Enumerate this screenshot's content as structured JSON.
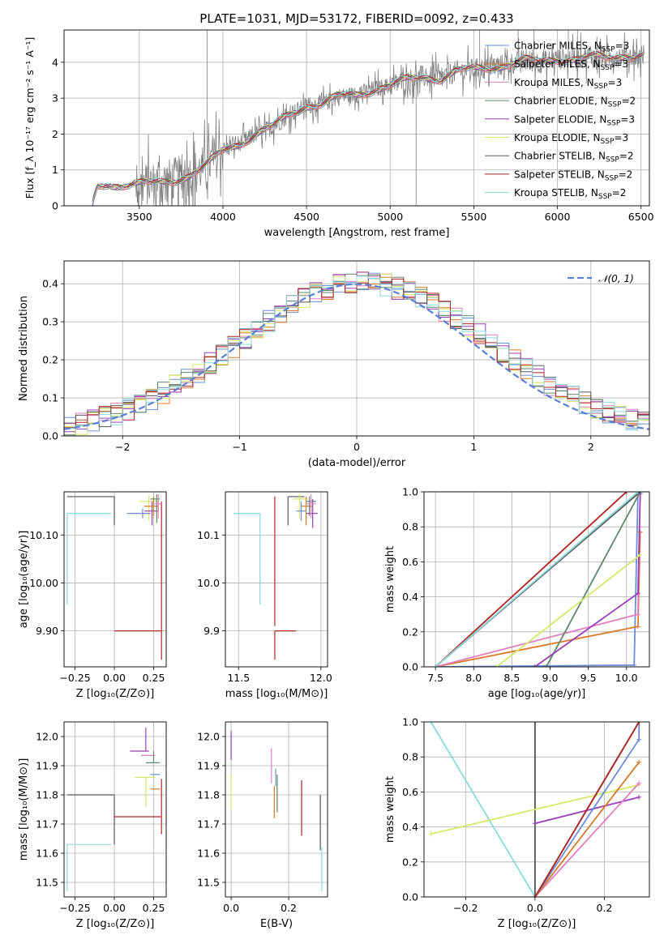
{
  "colors": [
    "#6a8fd8",
    "#d87a2c",
    "#e17fbf",
    "#5a8a6a",
    "#9b3fb8",
    "#d4e86a",
    "#555555",
    "#b22222",
    "#8adada"
  ],
  "chart_data": [
    {
      "id": "spectrum",
      "type": "line",
      "title": "PLATE=1031, MJD=53172, FIBERID=0092, z=0.433",
      "xlabel": "wavelength [Angstrom, rest frame]",
      "ylabel": "Flux [f_λ 10⁻¹⁷ erg cm⁻² s⁻¹ A⁻¹]",
      "xlim": [
        3050,
        6550
      ],
      "ylim": [
        0,
        4.9
      ],
      "xticks": [
        3500,
        4000,
        4500,
        5000,
        5500,
        6000,
        6500
      ],
      "yticks": [
        0,
        1,
        2,
        3,
        4
      ],
      "legend_position": "top-right",
      "series": [
        {
          "name": "Chabrier MILES, N_SSP=3"
        },
        {
          "name": "Salpeter MILES, N_SSP=3"
        },
        {
          "name": "Kroupa MILES, N_SSP=3"
        },
        {
          "name": "Chabrier ELODIE, N_SSP=2"
        },
        {
          "name": "Salpeter ELODIE, N_SSP=3"
        },
        {
          "name": "Kroupa ELODIE, N_SSP=3"
        },
        {
          "name": "Chabrier STELIB, N_SSP=2"
        },
        {
          "name": "Salpeter STELIB, N_SSP=2"
        },
        {
          "name": "Kroupa STELIB, N_SSP=2"
        }
      ],
      "model_x": [
        3220,
        3250,
        3300,
        3400,
        3500,
        3600,
        3700,
        3800,
        3900,
        4000,
        4100,
        4200,
        4300,
        4400,
        4500,
        4600,
        4700,
        4800,
        4900,
        5000,
        5100,
        5200,
        5300,
        5400,
        5500,
        5600,
        5700,
        5800,
        5900,
        6000,
        6100,
        6200,
        6300,
        6400,
        6500
      ],
      "model_y": [
        0.05,
        0.55,
        0.6,
        0.58,
        0.6,
        0.63,
        0.72,
        0.85,
        1.1,
        1.55,
        1.75,
        2.0,
        2.2,
        2.55,
        2.8,
        2.85,
        3.05,
        3.1,
        3.25,
        3.35,
        3.5,
        3.6,
        3.55,
        3.75,
        3.8,
        3.85,
        3.95,
        4.05,
        4.0,
        4.1,
        4.1,
        4.15,
        4.1,
        4.2,
        4.2
      ]
    },
    {
      "id": "residuals",
      "type": "step",
      "xlabel": "(data-model)/error",
      "ylabel": "Normed distribution",
      "xlim": [
        -2.5,
        2.5
      ],
      "ylim": [
        0,
        0.46
      ],
      "xticks": [
        -2,
        -1,
        0,
        1,
        2
      ],
      "yticks": [
        0.0,
        0.1,
        0.2,
        0.3,
        0.4
      ],
      "legend_position": "top-right",
      "reference_series": {
        "name": "𝒩(0, 1)",
        "style": "dashed"
      }
    },
    {
      "id": "age-vs-Z",
      "type": "errorbar",
      "xlabel": "Z [log₁₀(Z/Z⊙)]",
      "ylabel": "age  [log₁₀(age/yr)]",
      "xlim": [
        -0.32,
        0.33
      ],
      "ylim": [
        9.825,
        10.19
      ],
      "xticks": [
        -0.25,
        0.0,
        0.25
      ],
      "yticks": [
        9.9,
        10.0,
        10.1
      ],
      "points": [
        {
          "x": 0.0,
          "xerr": [
            0.3,
            0.0
          ],
          "y": 10.18,
          "yerr": [
            0.06,
            0.0
          ],
          "c": 6
        },
        {
          "x": -0.3,
          "xerr": [
            0,
            0.28
          ],
          "y": 10.145,
          "yerr": [
            0.19,
            0.0
          ],
          "c": 8
        },
        {
          "x": 0.3,
          "xerr": [
            0.3,
            0.0
          ],
          "y": 9.9,
          "yerr": [
            0.0,
            0.0
          ],
          "c": 7
        },
        {
          "x": 0.3,
          "xerr": [
            0,
            0
          ],
          "y": 10.17,
          "yerr": [
            0.33,
            0.0
          ],
          "c": 7
        },
        {
          "x": 0.22,
          "xerr": [
            0.06,
            0.06
          ],
          "y": 10.17,
          "yerr": [
            0.04,
            0.01
          ],
          "c": 5
        },
        {
          "x": 0.24,
          "xerr": [
            0.05,
            0.04
          ],
          "y": 10.15,
          "yerr": [
            0.03,
            0.02
          ],
          "c": 4
        },
        {
          "x": 0.25,
          "xerr": [
            0.06,
            0.03
          ],
          "y": 10.16,
          "yerr": [
            0.02,
            0.02
          ],
          "c": 1
        },
        {
          "x": 0.27,
          "xerr": [
            0.04,
            0.02
          ],
          "y": 10.175,
          "yerr": [
            0.05,
            0.01
          ],
          "c": 3
        },
        {
          "x": 0.28,
          "xerr": [
            0.04,
            0.02
          ],
          "y": 10.165,
          "yerr": [
            0.03,
            0.02
          ],
          "c": 2
        },
        {
          "x": 0.18,
          "xerr": [
            0.1,
            0.05
          ],
          "y": 10.145,
          "yerr": [
            0.01,
            0.01
          ],
          "c": 0
        }
      ]
    },
    {
      "id": "age-vs-mass",
      "type": "errorbar",
      "xlabel": "mass [log₁₀(M/M⊙)]",
      "ylabel": "",
      "xlim": [
        11.42,
        12.04
      ],
      "ylim": [
        9.825,
        10.19
      ],
      "xticks": [
        11.5,
        12.0
      ],
      "yticks": [
        9.9,
        10.0,
        10.1
      ],
      "points": [
        {
          "x": 11.8,
          "xerr": [
            0.0,
            0.1
          ],
          "y": 10.18,
          "yerr": [
            0.06,
            0.0
          ],
          "c": 6
        },
        {
          "x": 11.63,
          "xerr": [
            0.16,
            0.0
          ],
          "y": 10.145,
          "yerr": [
            0.19,
            0.0
          ],
          "c": 8
        },
        {
          "x": 11.72,
          "xerr": [
            0.0,
            0.13
          ],
          "y": 9.9,
          "yerr": [
            0.06,
            0.0
          ],
          "c": 7
        },
        {
          "x": 11.72,
          "xerr": [
            0.0,
            0.0
          ],
          "y": 10.18,
          "yerr": [
            0.27,
            0.0
          ],
          "c": 7
        },
        {
          "x": 11.87,
          "xerr": [
            0.04,
            0.05
          ],
          "y": 10.175,
          "yerr": [
            0.04,
            0.01
          ],
          "c": 5
        },
        {
          "x": 11.91,
          "xerr": [
            0.03,
            0.04
          ],
          "y": 10.16,
          "yerr": [
            0.04,
            0.02
          ],
          "c": 1
        },
        {
          "x": 11.93,
          "xerr": [
            0.02,
            0.04
          ],
          "y": 10.17,
          "yerr": [
            0.03,
            0.01
          ],
          "c": 3
        },
        {
          "x": 11.95,
          "xerr": [
            0.04,
            0.03
          ],
          "y": 10.145,
          "yerr": [
            0.03,
            0.03
          ],
          "c": 4
        },
        {
          "x": 11.94,
          "xerr": [
            0.03,
            0.03
          ],
          "y": 10.165,
          "yerr": [
            0.03,
            0.02
          ],
          "c": 2
        },
        {
          "x": 11.88,
          "xerr": [
            0.03,
            0.03
          ],
          "y": 10.15,
          "yerr": [
            0.02,
            0.02
          ],
          "c": 0
        }
      ]
    },
    {
      "id": "cumulative-mass-weight-vs-age",
      "type": "line",
      "xlabel": "age  [log₁₀(age/yr)]",
      "ylabel": "mass weight",
      "xlim": [
        7.35,
        10.3
      ],
      "ylim": [
        0,
        1.0
      ],
      "xticks": [
        7.5,
        8.0,
        8.5,
        9.0,
        9.5,
        10.0
      ],
      "yticks": [
        0.0,
        0.2,
        0.4,
        0.6,
        0.8,
        1.0
      ],
      "series": [
        {
          "c": 0,
          "x": [
            7.5,
            10.1,
            10.15
          ],
          "y": [
            0.0,
            0.01,
            1.0
          ]
        },
        {
          "c": 1,
          "x": [
            7.5,
            10.15,
            10.18
          ],
          "y": [
            0.0,
            0.23,
            0.77
          ]
        },
        {
          "c": 2,
          "x": [
            7.5,
            10.15,
            10.17
          ],
          "y": [
            0.0,
            0.3,
            0.8
          ]
        },
        {
          "c": 3,
          "x": [
            8.95,
            10.18
          ],
          "y": [
            0.0,
            1.0
          ]
        },
        {
          "c": 4,
          "x": [
            8.8,
            10.15,
            10.18
          ],
          "y": [
            0.0,
            0.42,
            0.99
          ]
        },
        {
          "c": 5,
          "x": [
            8.3,
            10.18
          ],
          "y": [
            0.0,
            0.64
          ]
        },
        {
          "c": 6,
          "x": [
            7.5,
            10.18
          ],
          "y": [
            0.0,
            1.0
          ]
        },
        {
          "c": 7,
          "x": [
            7.5,
            10.0
          ],
          "y": [
            0.0,
            1.0
          ]
        },
        {
          "c": 8,
          "x": [
            7.5,
            10.15
          ],
          "y": [
            0.0,
            1.0
          ]
        }
      ]
    },
    {
      "id": "mass-vs-Z",
      "type": "errorbar",
      "xlabel": "Z [log₁₀(Z/Z⊙)]",
      "ylabel": "mass [log₁₀(M/M⊙)]",
      "xlim": [
        -0.32,
        0.33
      ],
      "ylim": [
        11.45,
        12.05
      ],
      "xticks": [
        -0.25,
        0.0,
        0.25
      ],
      "yticks": [
        11.5,
        11.6,
        11.7,
        11.8,
        11.9,
        12.0
      ],
      "points": [
        {
          "x": 0.0,
          "xerr": [
            0.3,
            0.0
          ],
          "y": 11.8,
          "yerr": [
            0.17,
            0.0
          ],
          "c": 6
        },
        {
          "x": -0.3,
          "xerr": [
            0,
            0.28
          ],
          "y": 11.63,
          "yerr": [
            0.16,
            0.0
          ],
          "c": 8
        },
        {
          "x": 0.3,
          "xerr": [
            0.3,
            0.0
          ],
          "y": 11.725,
          "yerr": [
            0.06,
            0.13
          ],
          "c": 7
        },
        {
          "x": 0.2,
          "xerr": [
            0.0,
            0.0
          ],
          "y": 11.95,
          "yerr": [
            0.0,
            0.08
          ],
          "c": 4
        },
        {
          "x": 0.18,
          "xerr": [
            0.08,
            0.04
          ],
          "y": 11.95,
          "yerr": [
            0.0,
            0.0
          ],
          "c": 4
        },
        {
          "x": 0.22,
          "xerr": [
            0.05,
            0.04
          ],
          "y": 11.935,
          "yerr": [
            0.0,
            0.0
          ],
          "c": 2
        },
        {
          "x": 0.25,
          "xerr": [
            0.05,
            0.04
          ],
          "y": 11.91,
          "yerr": [
            0.0,
            0.04
          ],
          "c": 3
        },
        {
          "x": 0.27,
          "xerr": [
            0.04,
            0.02
          ],
          "y": 11.87,
          "yerr": [
            0.0,
            0.0
          ],
          "c": 0
        },
        {
          "x": 0.2,
          "xerr": [
            0.07,
            0.06
          ],
          "y": 11.86,
          "yerr": [
            0.1,
            0.0
          ],
          "c": 5
        },
        {
          "x": 0.27,
          "xerr": [
            0.04,
            0.02
          ],
          "y": 11.82,
          "yerr": [
            0.0,
            0.0
          ],
          "c": 1
        }
      ]
    },
    {
      "id": "mass-vs-EBV",
      "type": "errorbar",
      "xlabel": "E(B-V)",
      "ylabel": "",
      "xlim": [
        -0.02,
        0.335
      ],
      "ylim": [
        11.45,
        12.05
      ],
      "xticks": [
        0.0,
        0.2
      ],
      "yticks": [
        11.5,
        11.6,
        11.7,
        11.8,
        11.9,
        12.0
      ],
      "points": [
        {
          "x": 0.0,
          "xerr": [
            0,
            0
          ],
          "y": 11.97,
          "yerr": [
            0.05,
            0.05
          ],
          "c": 4
        },
        {
          "x": 0.0,
          "xerr": [
            0,
            0
          ],
          "y": 11.82,
          "yerr": [
            0.07,
            0.05
          ],
          "c": 5
        },
        {
          "x": 0.14,
          "xerr": [
            0,
            0
          ],
          "y": 11.9,
          "yerr": [
            0.06,
            0.06
          ],
          "c": 2
        },
        {
          "x": 0.155,
          "xerr": [
            0,
            0
          ],
          "y": 11.86,
          "yerr": [
            0.03,
            0.03
          ],
          "c": 0
        },
        {
          "x": 0.15,
          "xerr": [
            0,
            0
          ],
          "y": 11.79,
          "yerr": [
            0.07,
            0.04
          ],
          "c": 1
        },
        {
          "x": 0.16,
          "xerr": [
            0,
            0
          ],
          "y": 11.81,
          "yerr": [
            0.07,
            0.06
          ],
          "c": 3
        },
        {
          "x": 0.245,
          "xerr": [
            0,
            0
          ],
          "y": 11.76,
          "yerr": [
            0.1,
            0.09
          ],
          "c": 7
        },
        {
          "x": 0.31,
          "xerr": [
            0,
            0
          ],
          "y": 11.71,
          "yerr": [
            0.1,
            0.09
          ],
          "c": 6
        },
        {
          "x": 0.315,
          "xerr": [
            0,
            0
          ],
          "y": 11.55,
          "yerr": [
            0.08,
            0.07
          ],
          "c": 8
        }
      ]
    },
    {
      "id": "cumulative-mass-weight-vs-Z",
      "type": "line",
      "xlabel": "Z [log₁₀(Z/Z⊙)]",
      "ylabel": "mass weight",
      "xlim": [
        -0.32,
        0.33
      ],
      "ylim": [
        0,
        1.0
      ],
      "xticks": [
        -0.2,
        0.0,
        0.2
      ],
      "yticks": [
        0.0,
        0.2,
        0.4,
        0.6,
        0.8,
        1.0
      ],
      "series": [
        {
          "c": 8,
          "x": [
            -0.3,
            0.0
          ],
          "y": [
            1.0,
            0.0
          ]
        },
        {
          "c": 6,
          "x": [
            0.0,
            0.0
          ],
          "y": [
            0.0,
            1.0
          ]
        },
        {
          "c": 5,
          "x": [
            -0.3,
            0.3
          ],
          "y": [
            0.36,
            0.64
          ]
        },
        {
          "c": 4,
          "x": [
            0.0,
            0.3
          ],
          "y": [
            0.42,
            0.57
          ]
        },
        {
          "c": 2,
          "x": [
            0.0,
            0.3
          ],
          "y": [
            0.0,
            0.65
          ]
        },
        {
          "c": 1,
          "x": [
            0.0,
            0.3
          ],
          "y": [
            0.0,
            0.77
          ]
        },
        {
          "c": 0,
          "x": [
            0.0,
            0.3,
            0.3
          ],
          "y": [
            0.0,
            0.9,
            1.0
          ]
        },
        {
          "c": 3,
          "x": [
            0.0,
            0.3
          ],
          "y": [
            0.0,
            1.0
          ]
        },
        {
          "c": 7,
          "x": [
            0.0,
            0.3
          ],
          "y": [
            0.0,
            1.0
          ]
        }
      ]
    }
  ]
}
